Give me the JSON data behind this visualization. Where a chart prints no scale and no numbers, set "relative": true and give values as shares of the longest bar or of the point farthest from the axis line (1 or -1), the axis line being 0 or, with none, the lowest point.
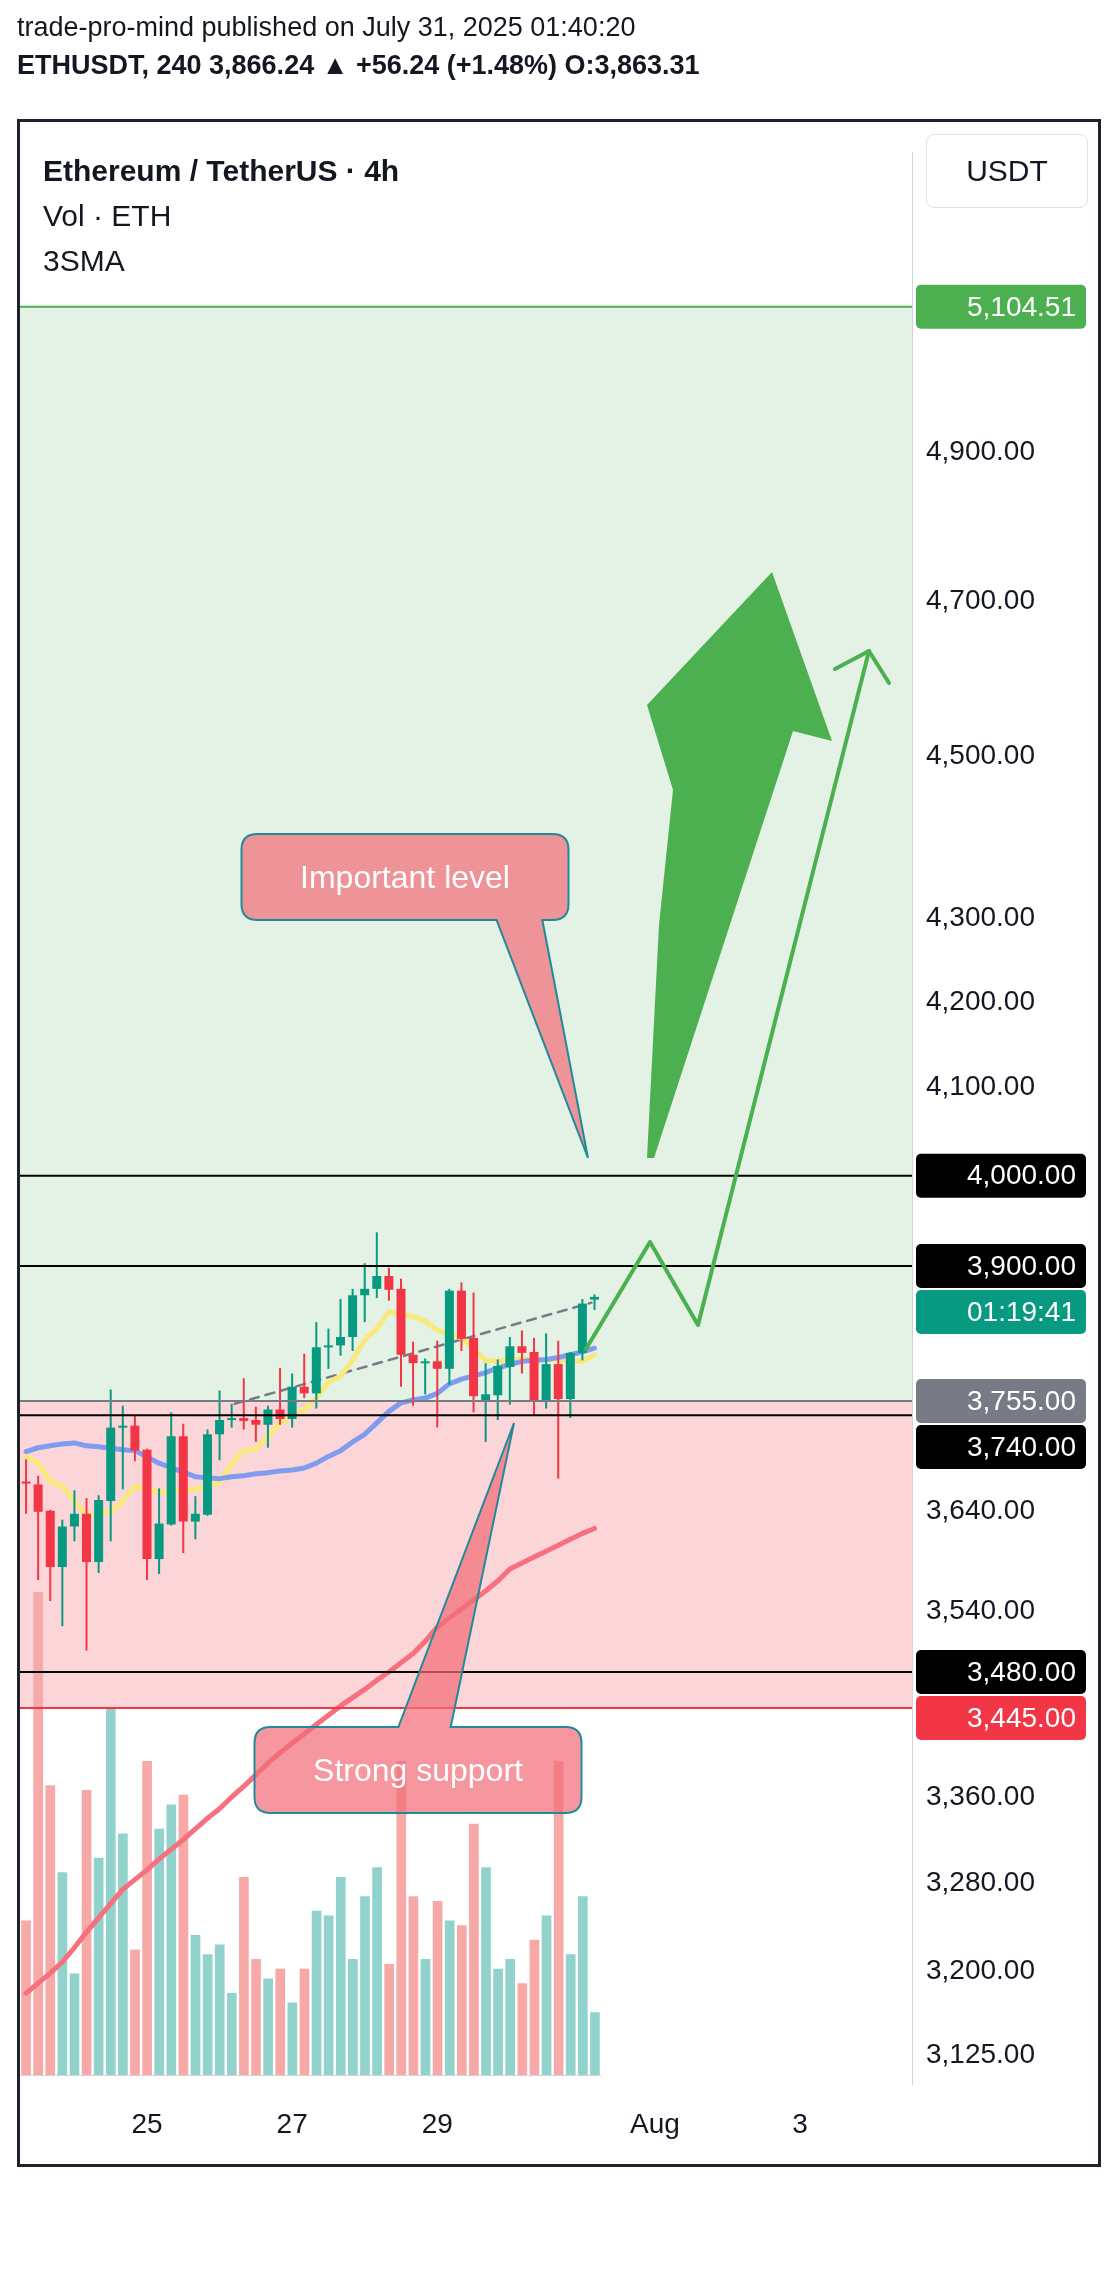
{
  "chart_data": [
    {
      "type": "candlestick",
      "title": "trade-pro-mind published on July 31, 2025 01:40:20",
      "subtitle": "ETHUSDT, 240 3,866.24 ▲ +56.24 (+1.48%) O:3,863.31",
      "ylabel": "USDT",
      "x": [
        "2025-07-23T08:00",
        "2025-07-23T12:00",
        "2025-07-23T16:00",
        "2025-07-23T20:00",
        "2025-07-24T00:00",
        "2025-07-24T04:00",
        "2025-07-24T08:00",
        "2025-07-24T12:00",
        "2025-07-24T16:00",
        "2025-07-24T20:00",
        "2025-07-25T00:00",
        "2025-07-25T04:00",
        "2025-07-25T08:00",
        "2025-07-25T12:00",
        "2025-07-25T16:00",
        "2025-07-25T20:00",
        "2025-07-26T00:00",
        "2025-07-26T04:00",
        "2025-07-26T08:00",
        "2025-07-26T12:00",
        "2025-07-26T16:00",
        "2025-07-26T20:00",
        "2025-07-27T00:00",
        "2025-07-27T04:00",
        "2025-07-27T08:00",
        "2025-07-27T12:00",
        "2025-07-27T16:00",
        "2025-07-27T20:00",
        "2025-07-28T00:00",
        "2025-07-28T04:00",
        "2025-07-28T08:00",
        "2025-07-28T12:00",
        "2025-07-28T16:00",
        "2025-07-28T20:00",
        "2025-07-29T00:00",
        "2025-07-29T04:00",
        "2025-07-29T08:00",
        "2025-07-29T12:00",
        "2025-07-29T16:00",
        "2025-07-29T20:00",
        "2025-07-30T00:00",
        "2025-07-30T04:00",
        "2025-07-30T08:00",
        "2025-07-30T12:00",
        "2025-07-30T16:00",
        "2025-07-30T20:00",
        "2025-07-31T00:00",
        "2025-07-31T04:00"
      ],
      "ohlc": [
        [
          3671,
          3694,
          3638,
          3669
        ],
        [
          3668,
          3677,
          3571,
          3640
        ],
        [
          3641,
          3642,
          3550,
          3584
        ],
        [
          3584,
          3632,
          3525,
          3625
        ],
        [
          3625,
          3662,
          3610,
          3638
        ],
        [
          3638,
          3654,
          3501,
          3589
        ],
        [
          3589,
          3657,
          3578,
          3652
        ],
        [
          3651,
          3767,
          3610,
          3727
        ],
        [
          3727,
          3750,
          3663,
          3729
        ],
        [
          3729,
          3740,
          3692,
          3703
        ],
        [
          3704,
          3705,
          3571,
          3592
        ],
        [
          3592,
          3664,
          3577,
          3628
        ],
        [
          3627,
          3743,
          3626,
          3718
        ],
        [
          3718,
          3731,
          3598,
          3630
        ],
        [
          3630,
          3656,
          3612,
          3638
        ],
        [
          3637,
          3725,
          3636,
          3720
        ],
        [
          3720,
          3766,
          3693,
          3735
        ],
        [
          3735,
          3752,
          3727,
          3737
        ],
        [
          3737,
          3779,
          3725,
          3734
        ],
        [
          3735,
          3749,
          3712,
          3730
        ],
        [
          3730,
          3750,
          3706,
          3746
        ],
        [
          3746,
          3790,
          3730,
          3736
        ],
        [
          3736,
          3784,
          3727,
          3770
        ],
        [
          3770,
          3805,
          3758,
          3763
        ],
        [
          3763,
          3839,
          3747,
          3812
        ],
        [
          3812,
          3832,
          3789,
          3814
        ],
        [
          3814,
          3864,
          3803,
          3823
        ],
        [
          3823,
          3875,
          3808,
          3868
        ],
        [
          3868,
          3903,
          3839,
          3875
        ],
        [
          3875,
          3937,
          3865,
          3889
        ],
        [
          3889,
          3898,
          3862,
          3874
        ],
        [
          3875,
          3886,
          3770,
          3804
        ],
        [
          3804,
          3818,
          3750,
          3795
        ],
        [
          3795,
          3800,
          3762,
          3797
        ],
        [
          3797,
          3819,
          3727,
          3789
        ],
        [
          3789,
          3875,
          3772,
          3873
        ],
        [
          3873,
          3882,
          3808,
          3821
        ],
        [
          3822,
          3871,
          3743,
          3760
        ],
        [
          3755,
          3795,
          3712,
          3762
        ],
        [
          3761,
          3799,
          3735,
          3792
        ],
        [
          3791,
          3823,
          3751,
          3813
        ],
        [
          3813,
          3830,
          3784,
          3806
        ],
        [
          3807,
          3822,
          3740,
          3754
        ],
        [
          3754,
          3827,
          3747,
          3794
        ],
        [
          3794,
          3819,
          3674,
          3757
        ],
        [
          3757,
          3807,
          3737,
          3806
        ],
        [
          3806,
          3864,
          3798,
          3859
        ],
        [
          3863.31,
          3869,
          3852,
          3866.24
        ]
      ],
      "colors": [
        "#f23645",
        "#f23645",
        "#f23645",
        "#089981",
        "#089981",
        "#f23645",
        "#089981",
        "#089981",
        "#089981",
        "#f23645",
        "#f23645",
        "#089981",
        "#089981",
        "#f23645",
        "#089981",
        "#089981",
        "#089981",
        "#089981",
        "#f23645",
        "#f23645",
        "#089981",
        "#f23645",
        "#089981",
        "#f23645",
        "#089981",
        "#089981",
        "#089981",
        "#089981",
        "#089981",
        "#089981",
        "#f23645",
        "#f23645",
        "#f23645",
        "#089981",
        "#f23645",
        "#089981",
        "#f23645",
        "#f23645",
        "#089981",
        "#089981",
        "#089981",
        "#f23645",
        "#f23645",
        "#089981",
        "#f23645",
        "#089981",
        "#089981",
        "#089981"
      ],
      "series": [
        {
          "type": "line",
          "color": "#f7707e",
          "values": [
            3180,
            3189,
            3198,
            3208,
            3221,
            3235,
            3248,
            3261,
            3274,
            3283,
            3292,
            3302,
            3311,
            3320,
            3330,
            3340,
            3349,
            3360,
            3370,
            3381,
            3392,
            3402,
            3411,
            3420,
            3429,
            3438,
            3447,
            3455,
            3463,
            3472,
            3480,
            3489,
            3498,
            3510,
            3524,
            3533,
            3542,
            3551,
            3560,
            3570,
            3582,
            3588,
            3594,
            3600,
            3606,
            3612,
            3618,
            3623
          ]
        },
        {
          "type": "line",
          "color": "#7f9cf0",
          "values": [
            3702,
            3706,
            3708,
            3710,
            3711,
            3708,
            3707,
            null,
            3704,
            3703,
            null,
            3690,
            null,
            null,
            3676,
            null,
            3674,
            3676,
            3677,
            3679,
            3680,
            3682,
            3683,
            3685,
            3690,
            3697,
            3703,
            3712,
            3720,
            3732,
            3744,
            3753,
            3756,
            3758,
            3763,
            3773,
            3778,
            null,
            3785,
            3790,
            null,
            3797,
            null,
            3799,
            3801,
            3804,
            3807,
            3811
          ]
        },
        {
          "type": "line",
          "color": "#f8e97a",
          "values": [
            3697,
            3690,
            3671,
            3666,
            3651,
            3636,
            null,
            3640,
            3651,
            3666,
            null,
            3660,
            null,
            null,
            3663,
            null,
            3670,
            3690,
            3703,
            3705,
            3718,
            3732,
            null,
            3746,
            3758,
            3775,
            3781,
            3798,
            3820,
            3832,
            3850,
            null,
            3845,
            3840,
            3830,
            null,
            3822,
            null,
            3798,
            3797,
            null,
            3800,
            null,
            null,
            null,
            null,
            3797,
            3804
          ]
        },
        {
          "type": "line",
          "color": "#787b86",
          "line_style": "dashed",
          "x": [
            "2025-07-26T05:00",
            "2025-07-31T03:00"
          ],
          "values": [
            3752,
            3860
          ]
        }
      ],
      "xlim": [
        "2025-07-23T06:00",
        "2025-08-04T13:00"
      ],
      "xticks": [
        {
          "value": "2025-07-25",
          "label": "25"
        },
        {
          "value": "2025-07-27",
          "label": "27"
        },
        {
          "value": "2025-07-29",
          "label": "29"
        },
        {
          "value": "2025-08-01",
          "label": "Aug"
        },
        {
          "value": "2025-08-03",
          "label": "3"
        }
      ],
      "ylim": [
        3100,
        5330
      ],
      "yticks": [
        {
          "value": 3125,
          "label": "3,125.00"
        },
        {
          "value": 3200,
          "label": "3,200.00"
        },
        {
          "value": 3280,
          "label": "3,280.00"
        },
        {
          "value": 3360,
          "label": "3,360.00"
        },
        {
          "value": 3540,
          "label": "3,540.00"
        },
        {
          "value": 3640,
          "label": "3,640.00"
        },
        {
          "value": 4100,
          "label": "4,100.00"
        },
        {
          "value": 4200,
          "label": "4,200.00"
        },
        {
          "value": 4300,
          "label": "4,300.00"
        },
        {
          "value": 4500,
          "label": "4,500.00"
        },
        {
          "value": 4700,
          "label": "4,700.00"
        },
        {
          "value": 4900,
          "label": "4,900.00"
        }
      ],
      "log": "y",
      "bands": [
        {
          "axis": "y",
          "from": 3755,
          "to": 5104.51,
          "color": "#c8e6c9"
        },
        {
          "axis": "y",
          "from": 3445,
          "to": 3755,
          "color": "#f8abb2"
        }
      ],
      "ref_lines": [
        {
          "axis": "y",
          "value": 5104.51,
          "label": "5,104.51",
          "color": "#4caf50"
        },
        {
          "axis": "y",
          "value": 4000,
          "label": "4,000.00",
          "color": "#000000"
        },
        {
          "axis": "y",
          "value": 3900,
          "label": "3,900.00",
          "color": "#000000"
        },
        {
          "axis": "y",
          "value": 3755,
          "label": "3,755.00",
          "color": "#787b86"
        },
        {
          "axis": "y",
          "value": 3740,
          "label": "3,740.00",
          "color": "#000000"
        },
        {
          "axis": "y",
          "value": 3480,
          "label": "3,480.00",
          "color": "#000000"
        },
        {
          "axis": "y",
          "value": 3445,
          "label": "3,445.00",
          "color": "#f23645"
        }
      ],
      "annotations": [
        "Ethereum / TetherUS · 4h",
        "Vol · ETH",
        "3SMA",
        "Important level",
        "Strong support",
        "01:19:41"
      ]
    },
    {
      "type": "bar",
      "relative": true,
      "categories": [
        null,
        null,
        null,
        null,
        null,
        null,
        null,
        null,
        null,
        null,
        null,
        null,
        null,
        null,
        null,
        null,
        null,
        null,
        null,
        null,
        null,
        null,
        null,
        null,
        null,
        null,
        null,
        null,
        null,
        null,
        null,
        null,
        null,
        null,
        null,
        null,
        null,
        null,
        null,
        null,
        null,
        null,
        null,
        null,
        null,
        null,
        null,
        null
      ],
      "values": [
        0.32,
        1.0,
        0.6,
        0.42,
        0.21,
        0.59,
        0.45,
        0.76,
        0.5,
        0.26,
        0.65,
        0.51,
        0.56,
        0.58,
        0.29,
        0.25,
        0.27,
        0.17,
        0.41,
        0.24,
        0.2,
        0.22,
        0.15,
        0.22,
        0.34,
        0.33,
        0.41,
        0.24,
        0.37,
        0.43,
        0.23,
        0.65,
        0.37,
        0.24,
        0.36,
        0.32,
        0.31,
        0.52,
        0.43,
        0.22,
        0.24,
        0.19,
        0.28,
        0.33,
        0.65,
        0.25,
        0.37,
        0.13
      ],
      "colors": [
        "#f7a9a7",
        "#f7a9a7",
        "#f7a9a7",
        "#92d2cc",
        "#92d2cc",
        "#f7a9a7",
        "#92d2cc",
        "#92d2cc",
        "#92d2cc",
        "#f7a9a7",
        "#f7a9a7",
        "#92d2cc",
        "#92d2cc",
        "#f7a9a7",
        "#92d2cc",
        "#92d2cc",
        "#92d2cc",
        "#92d2cc",
        "#f7a9a7",
        "#f7a9a7",
        "#92d2cc",
        "#f7a9a7",
        "#92d2cc",
        "#f7a9a7",
        "#92d2cc",
        "#92d2cc",
        "#92d2cc",
        "#92d2cc",
        "#92d2cc",
        "#92d2cc",
        "#f7a9a7",
        "#f7a9a7",
        "#f7a9a7",
        "#92d2cc",
        "#f7a9a7",
        "#92d2cc",
        "#f7a9a7",
        "#f7a9a7",
        "#92d2cc",
        "#92d2cc",
        "#92d2cc",
        "#f7a9a7",
        "#f7a9a7",
        "#92d2cc",
        "#f7a9a7",
        "#92d2cc",
        "#92d2cc",
        "#92d2cc"
      ]
    }
  ]
}
